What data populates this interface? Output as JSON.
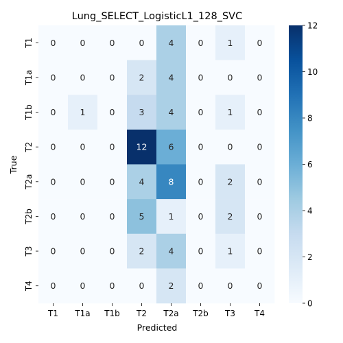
{
  "chart_data": {
    "type": "heatmap",
    "title": "Lung_SELECT_LogisticL1_128_SVC",
    "xlabel": "Predicted",
    "ylabel": "True",
    "x_categories": [
      "T1",
      "T1a",
      "T1b",
      "T2",
      "T2a",
      "T2b",
      "T3",
      "T4"
    ],
    "y_categories": [
      "T1",
      "T1a",
      "T1b",
      "T2",
      "T2a",
      "T2b",
      "T3",
      "T4"
    ],
    "matrix": [
      [
        0,
        0,
        0,
        0,
        4,
        0,
        1,
        0
      ],
      [
        0,
        0,
        0,
        2,
        4,
        0,
        0,
        0
      ],
      [
        0,
        1,
        0,
        3,
        4,
        0,
        1,
        0
      ],
      [
        0,
        0,
        0,
        12,
        6,
        0,
        0,
        0
      ],
      [
        0,
        0,
        0,
        4,
        8,
        0,
        2,
        0
      ],
      [
        0,
        0,
        0,
        5,
        1,
        0,
        2,
        0
      ],
      [
        0,
        0,
        0,
        2,
        4,
        0,
        1,
        0
      ],
      [
        0,
        0,
        0,
        0,
        2,
        0,
        0,
        0
      ]
    ],
    "colorbar": {
      "min": 0,
      "max": 12,
      "ticks": [
        0,
        2,
        4,
        6,
        8,
        10,
        12
      ],
      "colormap": "Blues"
    }
  }
}
